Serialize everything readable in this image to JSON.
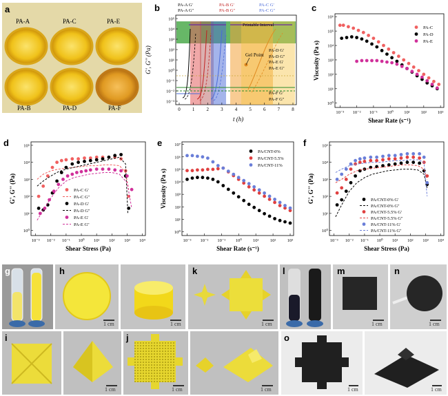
{
  "labels": {
    "a": "a",
    "b": "b",
    "c": "c",
    "d": "d",
    "e": "e",
    "f": "f",
    "g": "g",
    "h": "h",
    "i": "i",
    "j": "j",
    "k": "k",
    "l": "l",
    "m": "m",
    "n": "n",
    "o": "o"
  },
  "panel_a": {
    "samples": [
      "PA-A",
      "PA-C",
      "PA-E",
      "PA-B",
      "PA-D",
      "PA-F"
    ]
  },
  "panel_b": {
    "legend_top": [
      "PA-A G'",
      "PA-B G'",
      "PA-C G'",
      "PA-A G''",
      "PA-B G''",
      "PA-C G''"
    ],
    "legend_right": [
      "PA-D G'",
      "PA-D G''",
      "PA-E G'",
      "PA-E G''"
    ],
    "legend_bottom": [
      "PA-F G'",
      "PA-F G''"
    ],
    "printable": "Printable Interval",
    "gel_point": "Gel Point",
    "ylabel": "G', G'' (Pa)",
    "xlabel": "t (h)",
    "xticks": [
      "0",
      "1",
      "2",
      "3",
      "4",
      "5",
      "6",
      "7",
      "8"
    ],
    "yticks": [
      "10⁵",
      "10⁴",
      "10³",
      "10²",
      "10¹",
      "10⁰",
      "10⁻¹",
      "10⁻²",
      "10⁻³"
    ]
  },
  "chart_data": [
    {
      "type": "scatter",
      "panel": "c",
      "xlabel": "Shear Rate (s⁻¹)",
      "ylabel": "Viscosity (Pa s)",
      "log_x": true,
      "log_y": true,
      "xlim": [
        -3.3,
        3.2
      ],
      "ylim": [
        -0.3,
        6.2
      ],
      "xticks": [
        "10⁻³",
        "10⁻²",
        "10⁻¹",
        "10⁰",
        "10¹",
        "10²",
        "10³"
      ],
      "yticks": [
        "10⁰",
        "10¹",
        "10²",
        "10³",
        "10⁴",
        "10⁵",
        "10⁶"
      ],
      "series": [
        {
          "name": "PA-C",
          "color": "#f06060",
          "x": [
            -3.0,
            -2.8,
            -2.5,
            -2.2,
            -1.9,
            -1.6,
            -1.3,
            -1.0,
            -0.7,
            -0.4,
            -0.1,
            0.2,
            0.5,
            0.8,
            1.1,
            1.4,
            1.7,
            2.0,
            2.3,
            2.6,
            2.9
          ],
          "y": [
            5.4,
            5.4,
            5.3,
            5.2,
            5.05,
            4.9,
            4.7,
            4.5,
            4.25,
            4.0,
            3.75,
            3.5,
            3.25,
            3.0,
            2.75,
            2.5,
            2.25,
            2.0,
            1.75,
            1.5,
            1.3
          ]
        },
        {
          "name": "PA-D",
          "color": "#000000",
          "x": [
            -2.9,
            -2.6,
            -2.3,
            -2.0,
            -1.7,
            -1.4,
            -1.1,
            -0.8,
            -0.5,
            -0.2,
            0.1,
            0.4,
            0.7,
            1.0,
            1.3,
            1.6,
            1.9,
            2.2,
            2.5,
            2.8
          ],
          "y": [
            4.5,
            4.55,
            4.6,
            4.55,
            4.45,
            4.3,
            4.1,
            3.9,
            3.65,
            3.4,
            3.15,
            2.9,
            2.65,
            2.4,
            2.15,
            1.9,
            1.65,
            1.4,
            1.2,
            1.0
          ]
        },
        {
          "name": "PA-E",
          "color": "#d0309a",
          "x": [
            -2.0,
            -1.7,
            -1.4,
            -1.1,
            -0.8,
            -0.5,
            -0.2,
            0.1,
            0.4,
            0.7,
            1.0,
            1.3,
            1.6,
            1.9,
            2.2,
            2.5,
            2.8
          ],
          "y": [
            2.9,
            2.95,
            2.95,
            2.95,
            2.95,
            2.9,
            2.85,
            2.8,
            2.7,
            2.55,
            2.4,
            2.2,
            2.0,
            1.8,
            1.55,
            1.3,
            1.05
          ]
        }
      ]
    },
    {
      "type": "line",
      "panel": "d",
      "xlabel": "Shear Stress (Pa)",
      "ylabel": "G', G'' (Pa)",
      "log_x": true,
      "log_y": true,
      "xlim": [
        -3.3,
        4.2
      ],
      "ylim": [
        -0.3,
        5.2
      ],
      "xticks": [
        "10⁻³",
        "10⁻²",
        "10⁻¹",
        "10⁰",
        "10¹",
        "10²",
        "10³",
        "10⁴"
      ],
      "yticks": [
        "10⁰",
        "10¹",
        "10²",
        "10³",
        "10⁴",
        "10⁵"
      ],
      "series": [
        {
          "name": "PA-C G'",
          "color": "#f06060",
          "style": "points",
          "x": [
            -2.8,
            -2.5,
            -2.2,
            -1.9,
            -1.6,
            -1.3,
            -1.0,
            -0.6,
            -0.2,
            0.2,
            0.6,
            1.0,
            1.4,
            1.8,
            2.2,
            2.6,
            2.9,
            3.1
          ],
          "y": [
            2.0,
            2.6,
            3.2,
            3.7,
            4.0,
            4.1,
            4.15,
            4.2,
            4.2,
            4.25,
            4.25,
            4.3,
            4.3,
            4.3,
            4.3,
            4.2,
            3.5,
            2.0
          ]
        },
        {
          "name": "PA-C G''",
          "color": "#f06060",
          "style": "dash",
          "x": [
            -2.9,
            -2.5,
            -2.0,
            -1.5,
            -1.0,
            -0.5,
            0,
            0.5,
            1.0,
            1.5,
            2.0,
            2.5,
            2.9,
            3.1
          ],
          "y": [
            3.0,
            3.3,
            3.5,
            3.6,
            3.65,
            3.7,
            3.75,
            3.8,
            3.8,
            3.85,
            3.85,
            3.8,
            3.4,
            2.4
          ]
        },
        {
          "name": "PA-D G'",
          "color": "#000000",
          "style": "points",
          "x": [
            -2.8,
            -2.5,
            -2.2,
            -1.9,
            -1.6,
            -1.3,
            -1.0,
            -0.6,
            -0.2,
            0.2,
            0.6,
            1.0,
            1.4,
            1.8,
            2.2,
            2.6,
            2.9,
            3.1
          ],
          "y": [
            1.3,
            1.2,
            1.5,
            2.2,
            2.9,
            3.4,
            3.7,
            3.9,
            4.0,
            4.05,
            4.1,
            4.15,
            4.2,
            4.3,
            4.4,
            4.45,
            3.2,
            1.3
          ]
        },
        {
          "name": "PA-D G''",
          "color": "#000000",
          "style": "dash",
          "x": [
            -2.9,
            -2.5,
            -2.0,
            -1.5,
            -1.0,
            -0.5,
            0,
            0.5,
            1.0,
            1.5,
            2.0,
            2.5,
            2.9,
            3.05
          ],
          "y": [
            2.6,
            2.9,
            3.2,
            3.45,
            3.6,
            3.7,
            3.8,
            3.9,
            4.0,
            4.1,
            4.2,
            4.3,
            3.9,
            1.0
          ]
        },
        {
          "name": "PA-E G'",
          "color": "#d0309a",
          "style": "points",
          "x": [
            -2.7,
            -2.4,
            -2.1,
            -1.8,
            -1.5,
            -1.2,
            -0.9,
            -0.6,
            -0.3,
            0,
            0.3,
            0.6,
            1.0,
            1.4,
            1.8,
            2.2,
            2.6,
            3.0,
            3.3
          ],
          "y": [
            1.0,
            1.3,
            1.8,
            2.3,
            2.7,
            3.0,
            3.2,
            3.3,
            3.4,
            3.45,
            3.5,
            3.55,
            3.6,
            3.6,
            3.6,
            3.55,
            3.5,
            3.2,
            2.4
          ]
        },
        {
          "name": "PA-E G''",
          "color": "#d0309a",
          "style": "dash",
          "x": [
            -2.9,
            -2.5,
            -2.0,
            -1.5,
            -1.0,
            -0.5,
            0,
            0.5,
            1.0,
            1.5,
            2.0,
            2.5,
            3.0,
            3.3
          ],
          "y": [
            0.6,
            1.2,
            1.9,
            2.5,
            2.9,
            3.1,
            3.2,
            3.3,
            3.35,
            3.4,
            3.4,
            3.3,
            2.8,
            1.3
          ]
        }
      ]
    },
    {
      "type": "scatter",
      "panel": "e",
      "xlabel": "Shear Rate (s⁻¹)",
      "ylabel": "Viscosity (Pa s)",
      "log_x": true,
      "log_y": true,
      "xlim": [
        -3.3,
        3.2
      ],
      "ylim": [
        -0.3,
        7.2
      ],
      "xticks": [
        "10⁻³",
        "10⁻²",
        "10⁻¹",
        "10⁰",
        "10¹",
        "10²",
        "10³"
      ],
      "yticks": [
        "10⁰",
        "10¹",
        "10²",
        "10³",
        "10⁴",
        "10⁵",
        "10⁶",
        "10⁷"
      ],
      "series": [
        {
          "name": "PA/CNT-0%",
          "color": "#000000",
          "x": [
            -3.0,
            -2.7,
            -2.4,
            -2.1,
            -1.8,
            -1.5,
            -1.2,
            -0.9,
            -0.6,
            -0.3,
            0,
            0.3,
            0.6,
            0.9,
            1.2,
            1.5,
            1.8,
            2.1,
            2.4,
            2.7,
            3.0
          ],
          "y": [
            4.2,
            4.3,
            4.35,
            4.35,
            4.3,
            4.2,
            4.0,
            3.7,
            3.4,
            3.1,
            2.8,
            2.5,
            2.2,
            1.95,
            1.7,
            1.45,
            1.25,
            1.05,
            0.9,
            0.8,
            0.7
          ]
        },
        {
          "name": "PA/CNT-5.5%",
          "color": "#e04040",
          "x": [
            -3.0,
            -2.7,
            -2.4,
            -2.1,
            -1.8,
            -1.5,
            -1.2,
            -0.9,
            -0.6,
            -0.3,
            0,
            0.3,
            0.6,
            0.9,
            1.2,
            1.5,
            1.8,
            2.1,
            2.4,
            2.7,
            3.0
          ],
          "y": [
            4.9,
            4.9,
            4.95,
            4.95,
            5.0,
            5.0,
            5.05,
            5.1,
            4.8,
            4.5,
            4.2,
            3.9,
            3.6,
            3.35,
            3.1,
            2.85,
            2.6,
            2.35,
            2.1,
            1.9,
            1.7
          ]
        },
        {
          "name": "PA/CNT-11%",
          "color": "#6a7ed8",
          "x": [
            -3.0,
            -2.7,
            -2.4,
            -2.1,
            -1.8,
            -1.5,
            -1.2,
            -0.9,
            -0.6,
            -0.3,
            0,
            0.3,
            0.6,
            0.9,
            1.2,
            1.5,
            1.8,
            2.1,
            2.4,
            2.7,
            3.0
          ],
          "y": [
            6.1,
            6.1,
            6.05,
            6.0,
            5.9,
            5.6,
            5.3,
            5.1,
            4.85,
            4.6,
            4.35,
            4.1,
            3.85,
            3.6,
            3.35,
            3.1,
            2.85,
            2.6,
            2.35,
            2.1,
            1.9
          ]
        }
      ]
    },
    {
      "type": "line",
      "panel": "f",
      "xlabel": "Shear Stress (Pa)",
      "ylabel": "G', G'' (Pa)",
      "log_x": true,
      "log_y": true,
      "xlim": [
        -3.3,
        4.2
      ],
      "ylim": [
        -0.3,
        5.2
      ],
      "xticks": [
        "10⁻³",
        "10⁻²",
        "10⁻¹",
        "10⁰",
        "10¹",
        "10²",
        "10³",
        "10⁴"
      ],
      "yticks": [
        "10⁰",
        "10¹",
        "10²",
        "10³",
        "10⁴",
        "10⁵"
      ],
      "series": [
        {
          "name": "PA/CNT-0% G'",
          "color": "#000000",
          "style": "points",
          "x": [
            -2.8,
            -2.5,
            -2.2,
            -1.9,
            -1.6,
            -1.3,
            -1.0,
            -0.6,
            -0.2,
            0.2,
            0.6,
            1.0,
            1.4,
            1.8,
            2.2,
            2.6,
            2.9,
            3.1
          ],
          "y": [
            1.5,
            1.8,
            2.3,
            2.8,
            3.2,
            3.5,
            3.6,
            3.7,
            3.75,
            3.8,
            3.85,
            3.9,
            3.95,
            4.0,
            4.0,
            3.95,
            3.5,
            2.7
          ]
        },
        {
          "name": "PA/CNT-0% G''",
          "color": "#000000",
          "style": "dash",
          "x": [
            -2.9,
            -2.5,
            -2.0,
            -1.5,
            -1.0,
            -0.5,
            0,
            0.5,
            1.0,
            1.5,
            2.0,
            2.5,
            2.9,
            3.1
          ],
          "y": [
            0.8,
            1.5,
            2.3,
            2.8,
            3.1,
            3.3,
            3.4,
            3.5,
            3.55,
            3.6,
            3.6,
            3.55,
            3.3,
            2.5
          ]
        },
        {
          "name": "PA/CNT-5.5% G'",
          "color": "#e04040",
          "style": "points",
          "x": [
            -2.8,
            -2.5,
            -2.2,
            -1.9,
            -1.6,
            -1.3,
            -1.0,
            -0.6,
            -0.2,
            0.2,
            0.6,
            1.0,
            1.4,
            1.8,
            2.2,
            2.6,
            2.9,
            3.1
          ],
          "y": [
            2.2,
            2.5,
            3.0,
            3.6,
            3.9,
            4.0,
            4.05,
            4.1,
            4.1,
            4.15,
            4.2,
            4.2,
            4.25,
            4.3,
            4.3,
            4.25,
            4.0,
            3.2
          ]
        },
        {
          "name": "PA/CNT-5.5% G''",
          "color": "#e04040",
          "style": "dash",
          "x": [
            -2.9,
            -2.5,
            -2.0,
            -1.5,
            -1.0,
            -0.5,
            0,
            0.5,
            1.0,
            1.5,
            2.0,
            2.5,
            2.9,
            3.1
          ],
          "y": [
            2.8,
            3.0,
            3.3,
            3.5,
            3.6,
            3.65,
            3.7,
            3.75,
            3.8,
            3.85,
            3.85,
            3.8,
            3.6,
            3.0
          ]
        },
        {
          "name": "PA/CNT-11% G'",
          "color": "#6a7ed8",
          "style": "points",
          "x": [
            -2.8,
            -2.5,
            -2.2,
            -1.9,
            -1.6,
            -1.3,
            -1.0,
            -0.6,
            -0.2,
            0.2,
            0.6,
            1.0,
            1.4,
            1.8,
            2.2,
            2.6,
            2.9,
            3.1
          ],
          "y": [
            3.0,
            3.3,
            3.6,
            3.9,
            4.1,
            4.2,
            4.25,
            4.3,
            4.3,
            4.35,
            4.4,
            4.4,
            4.45,
            4.5,
            4.5,
            4.5,
            4.3,
            2.8
          ]
        },
        {
          "name": "PA/CNT-11% G''",
          "color": "#6a7ed8",
          "style": "dash",
          "x": [
            -2.9,
            -2.5,
            -2.0,
            -1.5,
            -1.0,
            -0.5,
            0,
            0.5,
            1.0,
            1.5,
            2.0,
            2.5,
            2.9,
            3.1
          ],
          "y": [
            3.4,
            3.6,
            3.8,
            3.9,
            3.95,
            4.0,
            4.0,
            4.05,
            4.1,
            4.1,
            4.15,
            4.15,
            4.0,
            2.0
          ]
        }
      ]
    }
  ],
  "photos": {
    "scale": "1 cm"
  },
  "colors": {
    "yellow": "#f2d71a",
    "dark_yellow": "#e0a21a",
    "photo_bg_gray": "#cfcfcf",
    "cnt_black": "#1e1e1e"
  }
}
